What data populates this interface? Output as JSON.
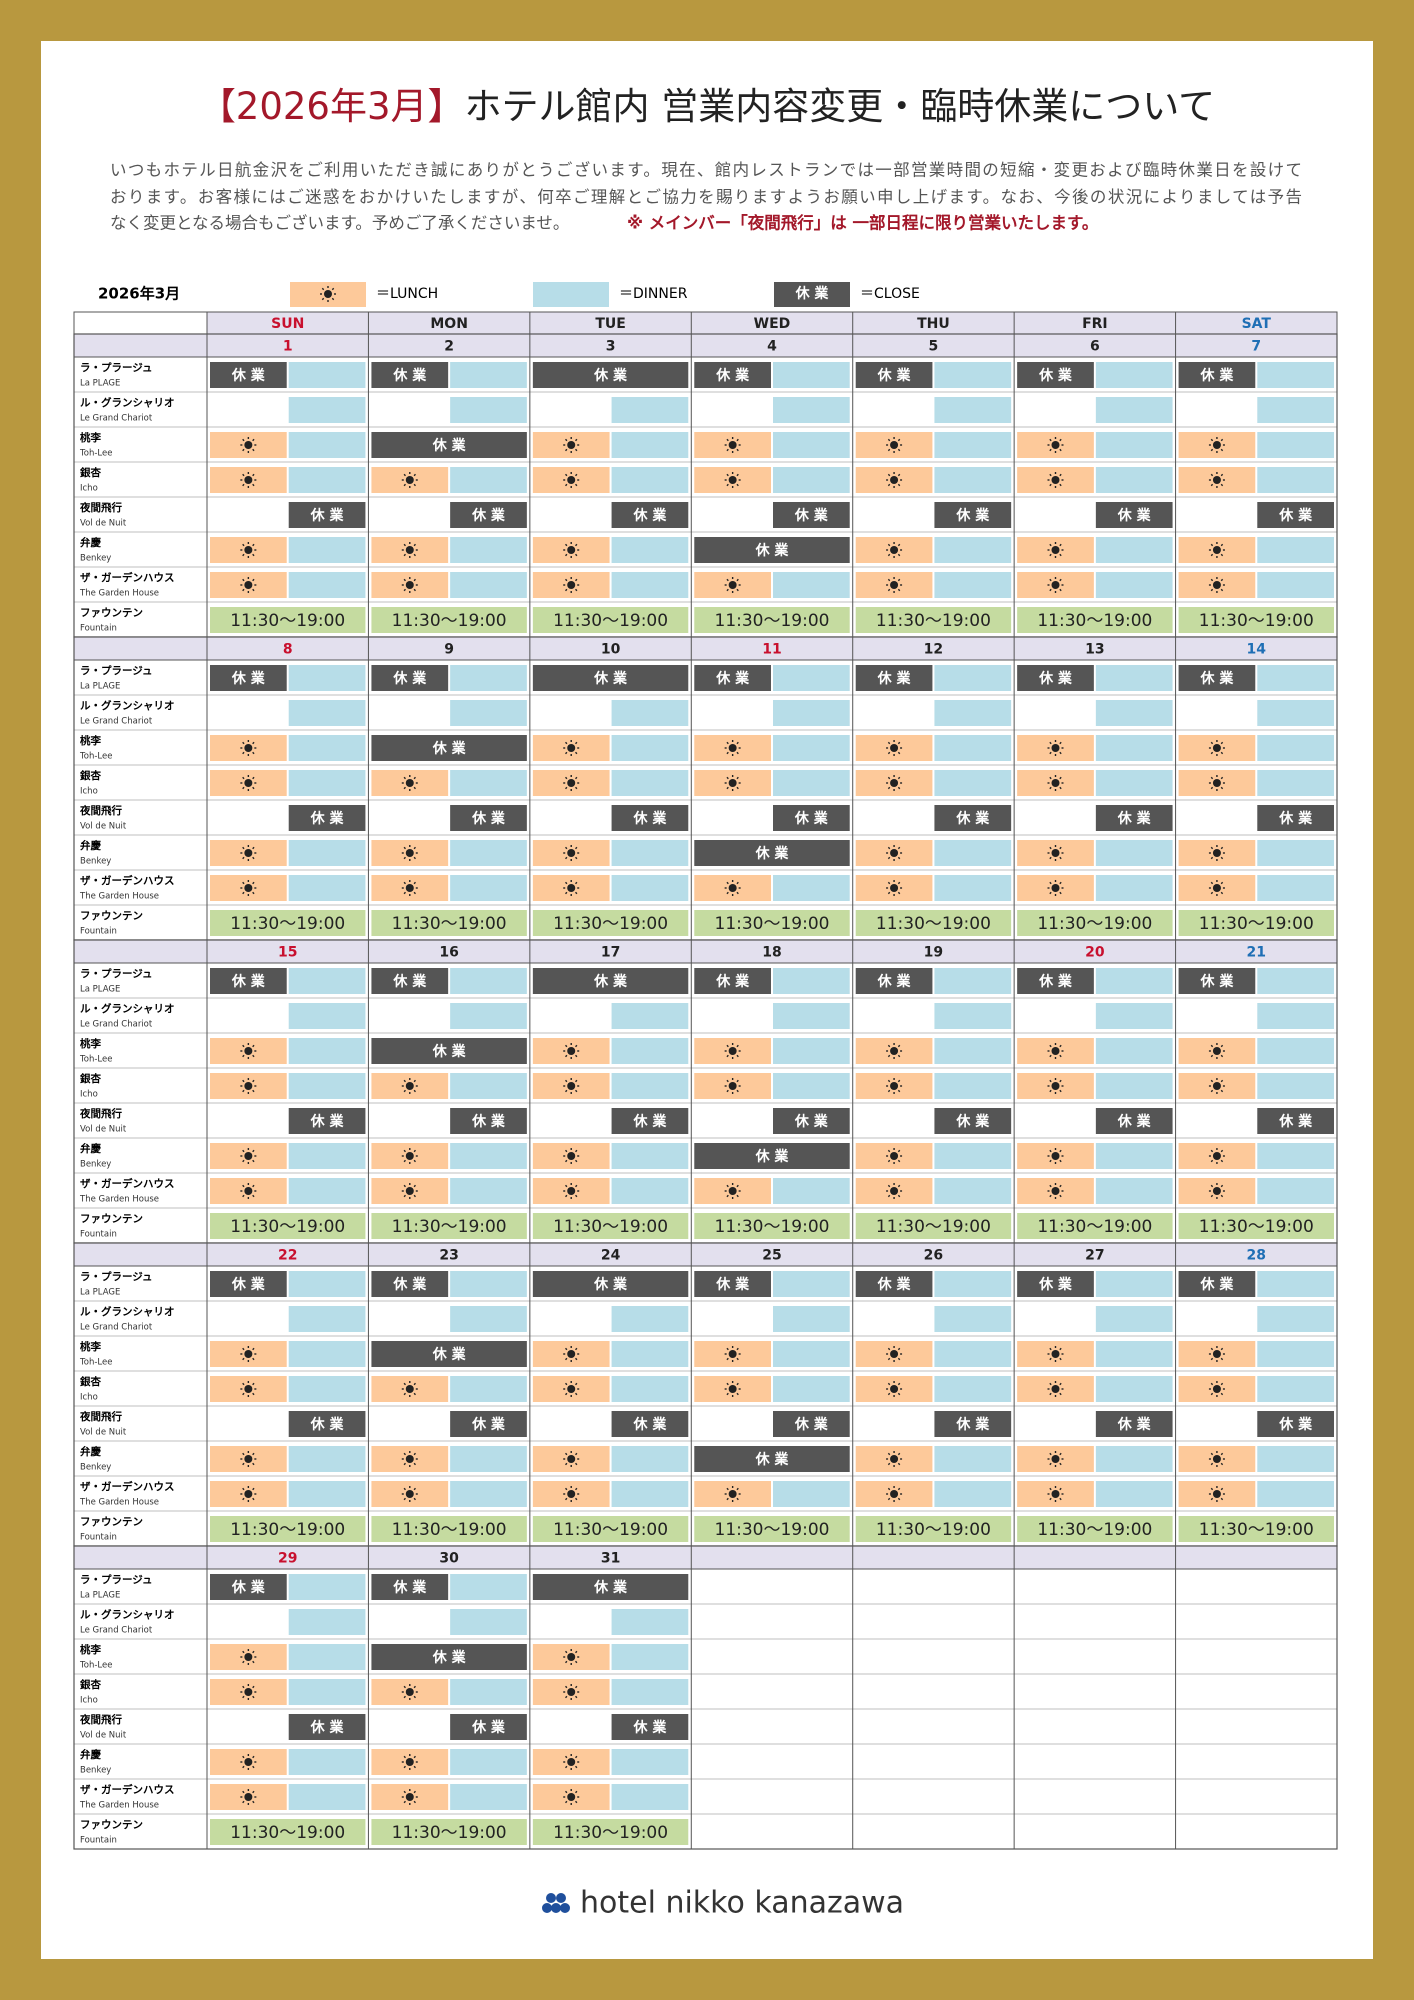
{
  "header": {
    "title_highlight": "【2026年3月】",
    "title_rest": "ホテル館内 営業内容変更・臨時休業について"
  },
  "intro": {
    "lines": [
      "いつもホテル日航金沢をご利用いただき誠にありがとうございます。現在、館内レストランでは一部営業時間の短縮・変更および臨時休業日を設けて",
      "おります。お客様にはご迷惑をおかけいたしますが、何卒ご理解とご協力を賜りますようお願い申し上げます。なお、今後の状況によりましては予告",
      "なく変更となる場合もございます。予めご了承くださいませ。"
    ],
    "note": "※ メインバー「夜間飛行」は 一部日程に限り営業いたします。"
  },
  "legend": {
    "month": "2026年3月",
    "items": [
      {
        "label": "＝LUNCH"
      },
      {
        "label": "＝DINNER"
      },
      {
        "symbol": "休 業",
        "label": "＝CLOSE"
      }
    ]
  },
  "weekdays": [
    "SUN",
    "MON",
    "TUE",
    "WED",
    "THU",
    "FRI",
    "SAT"
  ],
  "restaurants": [
    {
      "name_ja": "ラ・プラージュ",
      "name_en": "La PLAGE",
      "schedule": [
        [
          "close",
          "dinner"
        ],
        [
          "close",
          "dinner"
        ],
        [
          "close"
        ],
        [
          "close",
          "dinner"
        ],
        [
          "close",
          "dinner"
        ],
        [
          "close",
          "dinner"
        ],
        [
          "close",
          "dinner"
        ]
      ]
    },
    {
      "name_ja": "ル・グランシャリオ",
      "name_en": "Le Grand Chariot",
      "schedule": [
        [
          null,
          "dinner"
        ],
        [
          null,
          "dinner"
        ],
        [
          null,
          "dinner"
        ],
        [
          null,
          "dinner"
        ],
        [
          null,
          "dinner"
        ],
        [
          null,
          "dinner"
        ],
        [
          null,
          "dinner"
        ]
      ]
    },
    {
      "name_ja": "桃李",
      "name_en": "Toh-Lee",
      "schedule": [
        [
          "lunch",
          "dinner"
        ],
        [
          "close"
        ],
        [
          "lunch",
          "dinner"
        ],
        [
          "lunch",
          "dinner"
        ],
        [
          "lunch",
          "dinner"
        ],
        [
          "lunch",
          "dinner"
        ],
        [
          "lunch",
          "dinner"
        ]
      ]
    },
    {
      "name_ja": "銀杏",
      "name_en": "Icho",
      "schedule": [
        [
          "lunch",
          "dinner"
        ],
        [
          "lunch",
          "dinner"
        ],
        [
          "lunch",
          "dinner"
        ],
        [
          "lunch",
          "dinner"
        ],
        [
          "lunch",
          "dinner"
        ],
        [
          "lunch",
          "dinner"
        ],
        [
          "lunch",
          "dinner"
        ]
      ]
    },
    {
      "name_ja": "夜間飛行",
      "name_en": "Vol de Nuit",
      "schedule": [
        [
          null,
          "close"
        ],
        [
          null,
          "close"
        ],
        [
          null,
          "close"
        ],
        [
          null,
          "close"
        ],
        [
          null,
          "close"
        ],
        [
          null,
          "close"
        ],
        [
          null,
          "close"
        ]
      ]
    },
    {
      "name_ja": "弁慶",
      "name_en": "Benkey",
      "schedule": [
        [
          "lunch",
          "dinner"
        ],
        [
          "lunch",
          "dinner"
        ],
        [
          "lunch",
          "dinner"
        ],
        [
          "close"
        ],
        [
          "lunch",
          "dinner"
        ],
        [
          "lunch",
          "dinner"
        ],
        [
          "lunch",
          "dinner"
        ]
      ]
    },
    {
      "name_ja": "ザ・ガーデンハウス",
      "name_en": "The Garden House",
      "schedule": [
        [
          "lunch",
          "dinner"
        ],
        [
          "lunch",
          "dinner"
        ],
        [
          "lunch",
          "dinner"
        ],
        [
          "lunch",
          "dinner"
        ],
        [
          "lunch",
          "dinner"
        ],
        [
          "lunch",
          "dinner"
        ],
        [
          "lunch",
          "dinner"
        ]
      ]
    },
    {
      "name_ja": "ファウンテン",
      "name_en": "Fountain",
      "hours": "11:30～19:00"
    }
  ],
  "weeks": [
    [
      1,
      2,
      3,
      4,
      5,
      6,
      7
    ],
    [
      8,
      9,
      10,
      11,
      12,
      13,
      14
    ],
    [
      15,
      16,
      17,
      18,
      19,
      20,
      21
    ],
    [
      22,
      23,
      24,
      25,
      26,
      27,
      28
    ],
    [
      29,
      30,
      31,
      null,
      null,
      null,
      null
    ]
  ],
  "holidays": [
    11,
    20
  ],
  "footer": {
    "logo": "hotel nikko kanazawa"
  }
}
